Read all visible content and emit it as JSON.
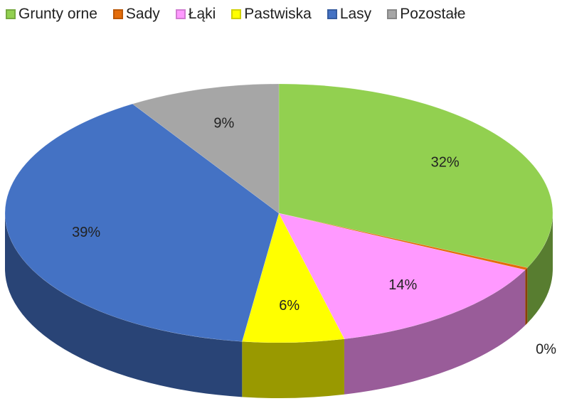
{
  "chart_data": {
    "type": "pie",
    "categories": [
      "Grunty orne",
      "Sady",
      "Łąki",
      "Pastwiska",
      "Lasy",
      "Pozostałe"
    ],
    "values": [
      32,
      0.3,
      14,
      6,
      39,
      9
    ],
    "value_labels": [
      "32%",
      "0%",
      "14%",
      "6%",
      "39%",
      "9%"
    ],
    "colors": [
      "#92d050",
      "#e46c0a",
      "#ff99ff",
      "#ffff00",
      "#4472c4",
      "#a6a6a6"
    ],
    "legend": "top"
  }
}
